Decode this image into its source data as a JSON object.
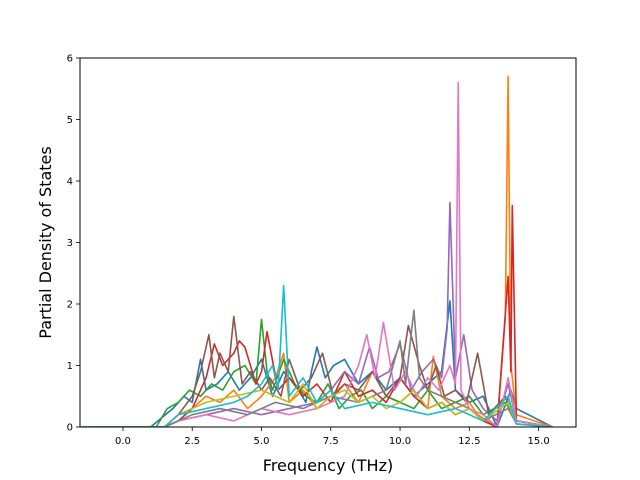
{
  "chart_data": {
    "type": "line",
    "title": "",
    "xlabel": "Frequency (THz)",
    "ylabel": "Partial Density of States",
    "xlim": [
      -1.55,
      16.35
    ],
    "ylim": [
      0,
      6
    ],
    "x_ticks": [
      0.0,
      2.5,
      5.0,
      7.5,
      10.0,
      12.5,
      15.0
    ],
    "x_tick_labels": [
      "0.0",
      "2.5",
      "5.0",
      "7.5",
      "10.0",
      "12.5",
      "15.0"
    ],
    "y_ticks": [
      0,
      1,
      2,
      3,
      4,
      5,
      6
    ],
    "y_tick_labels": [
      "0",
      "1",
      "2",
      "3",
      "4",
      "5",
      "6"
    ],
    "grid": false,
    "legend": "none",
    "series": [
      {
        "color": "#1f77b4",
        "x": [
          -1.5,
          1.0,
          1.8,
          2.2,
          2.5,
          2.8,
          3.0,
          3.4,
          3.8,
          4.2,
          4.6,
          5.0,
          5.4,
          5.8,
          6.2,
          6.6,
          6.8,
          7.0,
          7.3,
          7.6,
          8.0,
          8.5,
          9.0,
          9.5,
          10.0,
          10.5,
          11.0,
          11.5,
          11.8,
          12.0,
          12.5,
          13.0,
          13.5,
          14.0,
          14.2,
          15.5
        ],
        "y": [
          0,
          0,
          0.3,
          0.5,
          0.4,
          1.1,
          0.6,
          0.7,
          0.9,
          0.6,
          0.8,
          1.1,
          0.5,
          0.9,
          0.7,
          0.4,
          0.9,
          1.3,
          0.8,
          1.0,
          1.1,
          0.7,
          0.9,
          0.6,
          0.8,
          0.5,
          0.7,
          0.9,
          2.05,
          0.6,
          0.4,
          0.5,
          0,
          0.6,
          0.3,
          0
        ]
      },
      {
        "color": "#ff7f0e",
        "x": [
          -1.5,
          1.5,
          2.0,
          2.5,
          3.0,
          3.5,
          4.0,
          4.5,
          5.0,
          5.5,
          5.8,
          6.0,
          6.5,
          7.0,
          7.5,
          8.0,
          8.5,
          9.0,
          9.5,
          10.0,
          10.5,
          11.0,
          11.2,
          11.5,
          12.0,
          12.5,
          12.8,
          13.5,
          13.8,
          13.9,
          14.0,
          14.2,
          15.5
        ],
        "y": [
          0,
          0,
          0.2,
          0.3,
          0.5,
          0.4,
          0.6,
          0.3,
          0.5,
          0.8,
          1.2,
          0.4,
          0.6,
          0.3,
          0.5,
          0.7,
          0.4,
          0.9,
          0.5,
          0.4,
          0.6,
          0.3,
          1.15,
          0.5,
          0.3,
          0.4,
          0.2,
          0,
          1.8,
          5.7,
          1.0,
          0.2,
          0
        ]
      },
      {
        "color": "#2ca02c",
        "x": [
          -1.5,
          1.2,
          1.6,
          2.0,
          2.4,
          2.8,
          3.2,
          3.6,
          4.0,
          4.4,
          4.8,
          5.0,
          5.2,
          5.4,
          5.8,
          6.2,
          6.6,
          7.0,
          7.4,
          7.8,
          8.2,
          8.6,
          9.0,
          9.5,
          10.0,
          10.5,
          11.0,
          11.5,
          12.0,
          12.5,
          13.0,
          13.8,
          14.2,
          15.5
        ],
        "y": [
          0,
          0,
          0.3,
          0.4,
          0.6,
          0.5,
          0.7,
          0.6,
          0.9,
          1.0,
          0.7,
          1.75,
          0.9,
          0.6,
          1.1,
          0.7,
          0.5,
          0.4,
          0.7,
          0.3,
          0.5,
          0.6,
          0.3,
          0.5,
          0.4,
          0.3,
          0.6,
          0.3,
          0.4,
          0.5,
          0.2,
          0.4,
          0.1,
          0
        ]
      },
      {
        "color": "#d62728",
        "x": [
          -1.5,
          1.5,
          2.0,
          2.5,
          3.0,
          3.3,
          3.6,
          4.0,
          4.2,
          4.4,
          4.8,
          5.0,
          5.2,
          5.6,
          6.0,
          6.5,
          7.0,
          7.5,
          8.0,
          8.5,
          9.0,
          9.5,
          10.0,
          10.5,
          11.0,
          11.5,
          12.0,
          12.5,
          13.0,
          13.5,
          13.9,
          14.0,
          14.05,
          14.2,
          15.5
        ],
        "y": [
          0,
          0,
          0.1,
          0.3,
          0.8,
          1.35,
          1.0,
          1.2,
          1.4,
          1.3,
          0.7,
          0.9,
          1.55,
          0.6,
          0.8,
          0.5,
          0.7,
          0.4,
          0.9,
          0.5,
          0.6,
          0.4,
          0.8,
          0.5,
          0.3,
          0.4,
          0.2,
          0.3,
          0.1,
          0,
          2.45,
          0.9,
          3.6,
          0.1,
          0
        ]
      },
      {
        "color": "#9467bd",
        "x": [
          -1.5,
          1.5,
          2.0,
          3.0,
          4.0,
          5.0,
          6.0,
          7.0,
          7.5,
          8.0,
          8.5,
          8.9,
          9.2,
          9.6,
          10.0,
          10.4,
          10.8,
          11.2,
          11.5,
          11.7,
          11.8,
          12.0,
          12.3,
          12.6,
          13.0,
          13.5,
          13.9,
          14.2,
          15.5
        ],
        "y": [
          0,
          0,
          0.1,
          0.2,
          0.3,
          0.2,
          0.3,
          0.4,
          0.6,
          0.9,
          0.7,
          1.3,
          0.8,
          0.9,
          1.35,
          0.6,
          0.9,
          1.1,
          0.8,
          1.6,
          3.65,
          0.8,
          1.5,
          0.6,
          0.3,
          0.1,
          0.7,
          0.1,
          0
        ]
      },
      {
        "color": "#8c564b",
        "x": [
          -1.5,
          1.5,
          2.0,
          2.5,
          2.8,
          3.1,
          3.3,
          3.5,
          3.8,
          4.0,
          4.3,
          4.6,
          5.0,
          5.3,
          5.7,
          6.0,
          6.4,
          6.8,
          7.2,
          7.6,
          8.0,
          8.5,
          9.0,
          9.5,
          10.0,
          10.3,
          10.7,
          11.0,
          11.3,
          11.6,
          12.0,
          12.4,
          12.8,
          13.2,
          13.8,
          14.2,
          15.5
        ],
        "y": [
          0,
          0,
          0.2,
          0.5,
          0.9,
          1.5,
          0.8,
          1.2,
          0.9,
          1.8,
          0.7,
          0.9,
          0.6,
          0.8,
          0.5,
          1.1,
          0.6,
          0.8,
          1.2,
          0.5,
          0.7,
          0.6,
          0.9,
          0.5,
          0.8,
          1.65,
          1.0,
          0.6,
          1.0,
          0.5,
          0.6,
          0.4,
          1.2,
          0.2,
          0.5,
          0.1,
          0
        ]
      },
      {
        "color": "#e377c2",
        "x": [
          -1.5,
          1.5,
          2.0,
          3.0,
          4.0,
          5.0,
          6.0,
          7.0,
          8.0,
          8.5,
          8.8,
          9.1,
          9.4,
          9.8,
          10.2,
          10.6,
          11.0,
          11.4,
          11.8,
          12.0,
          12.1,
          12.2,
          12.5,
          13.0,
          13.5,
          13.9,
          14.2,
          15.5
        ],
        "y": [
          0,
          0,
          0.1,
          0.2,
          0.1,
          0.3,
          0.2,
          0.3,
          0.5,
          1.0,
          1.5,
          0.8,
          1.7,
          0.6,
          0.9,
          0.5,
          0.8,
          0.6,
          1.0,
          0.7,
          5.6,
          0.6,
          0.3,
          0.2,
          0,
          0.8,
          0.1,
          0
        ]
      },
      {
        "color": "#7f7f7f",
        "x": [
          -1.5,
          1.5,
          2.5,
          3.5,
          4.5,
          5.5,
          6.5,
          7.5,
          8.5,
          9.5,
          10.0,
          10.2,
          10.5,
          10.7,
          11.0,
          11.5,
          12.0,
          12.5,
          13.0,
          13.9,
          14.2,
          15.5
        ],
        "y": [
          0,
          0,
          0.2,
          0.3,
          0.2,
          0.4,
          0.3,
          0.5,
          0.4,
          0.6,
          1.4,
          0.7,
          1.9,
          0.8,
          0.6,
          0.5,
          0.4,
          0.3,
          0.1,
          0.3,
          0.05,
          0
        ]
      },
      {
        "color": "#bcbd22",
        "x": [
          -1.5,
          1.5,
          2.0,
          3.0,
          4.0,
          5.0,
          6.0,
          6.5,
          7.0,
          7.5,
          8.0,
          8.5,
          9.0,
          9.5,
          10.0,
          10.5,
          11.0,
          11.5,
          12.0,
          12.5,
          13.0,
          13.9,
          14.2,
          15.5
        ],
        "y": [
          0,
          0,
          0.2,
          0.4,
          0.5,
          0.6,
          0.4,
          0.7,
          0.3,
          0.5,
          0.6,
          0.4,
          0.5,
          0.3,
          0.4,
          0.6,
          0.3,
          0.4,
          0.2,
          0.3,
          0.1,
          0.4,
          0.05,
          0
        ]
      },
      {
        "color": "#17becf",
        "x": [
          -1.5,
          1.5,
          2.0,
          3.0,
          4.0,
          4.5,
          5.0,
          5.4,
          5.6,
          5.8,
          6.0,
          6.5,
          7.0,
          7.5,
          8.0,
          9.0,
          10.0,
          11.0,
          12.0,
          13.0,
          13.9,
          14.2,
          15.5
        ],
        "y": [
          0,
          0,
          0.2,
          0.3,
          0.4,
          0.5,
          0.7,
          1.0,
          0.6,
          2.3,
          0.5,
          0.8,
          0.4,
          0.6,
          0.3,
          0.4,
          0.3,
          0.2,
          0.3,
          0.1,
          0.5,
          0.05,
          0
        ]
      }
    ]
  }
}
